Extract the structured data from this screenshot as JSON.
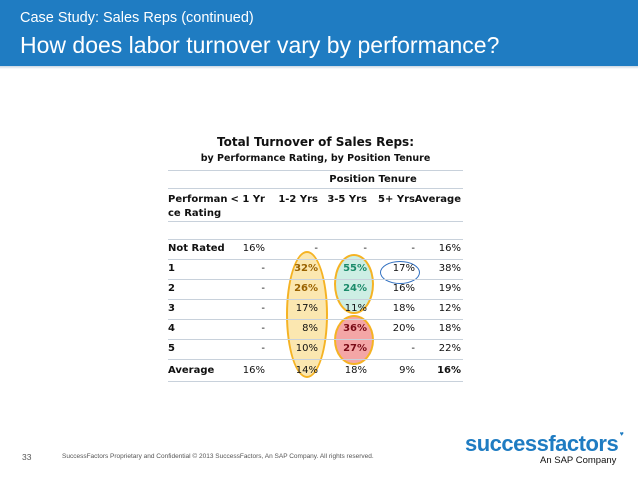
{
  "header": {
    "subtitle": "Case Study: Sales Reps (continued)",
    "title": "How does labor turnover vary by performance?",
    "background": "#1f7cc2"
  },
  "table": {
    "title": "Total Turnover of Sales Reps:",
    "subtitle": "by Performance Rating, by Position Tenure",
    "group_header": "Position Tenure",
    "row_header_line1": "Performan",
    "row_header_line2": "ce Rating",
    "columns": [
      "< 1 Yr",
      "1-2 Yrs",
      "3-5 Yrs",
      "5+ Yrs",
      "Average"
    ],
    "rows": [
      {
        "label": "Not Rated",
        "values": [
          "16%",
          "-",
          "-",
          "-",
          "16%"
        ]
      },
      {
        "label": "1",
        "values": [
          "-",
          "32%",
          "55%",
          "17%",
          "38%"
        ]
      },
      {
        "label": "2",
        "values": [
          "-",
          "26%",
          "24%",
          "16%",
          "19%"
        ]
      },
      {
        "label": "3",
        "values": [
          "-",
          "17%",
          "11%",
          "18%",
          "12%"
        ]
      },
      {
        "label": "4",
        "values": [
          "-",
          "8%",
          "36%",
          "20%",
          "18%"
        ]
      },
      {
        "label": "5",
        "values": [
          "-",
          "10%",
          "27%",
          "-",
          "22%"
        ]
      },
      {
        "label": "Average",
        "values": [
          "16%",
          "14%",
          "18%",
          "9%",
          "16%"
        ]
      }
    ],
    "highlight_colors": {
      "yellow_fill": "#fbe7b0",
      "yellow_border": "#f5b324",
      "teal_fill": "#cdeee4",
      "red_fill": "#f4a6a6",
      "blue_border": "#2f6fc0",
      "blue_text": "#1f5aa8",
      "teal_text": "#1b8b6a",
      "red_text": "#7a0b16",
      "gold_text": "#9a6200"
    }
  },
  "footer": {
    "page_number": "33",
    "copyright": "SuccessFactors Proprietary and Confidential   © 2013 SuccessFactors, An SAP Company.  All rights reserved.",
    "logo_text": "successfactors",
    "logo_tagline": "An SAP Company"
  }
}
